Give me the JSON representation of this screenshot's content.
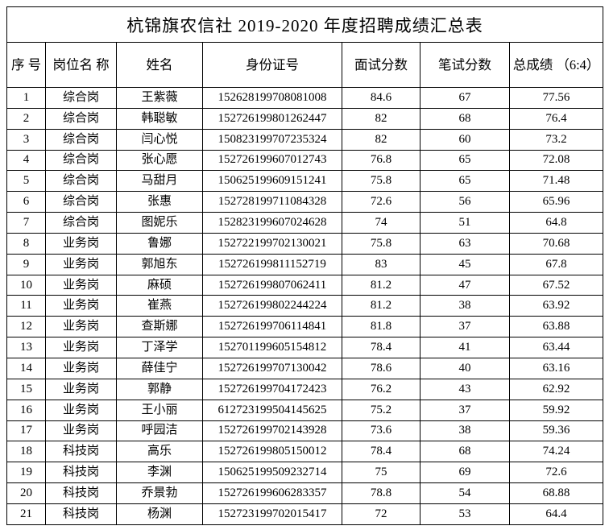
{
  "title": "杭锦旗农信社 2019-2020 年度招聘成绩汇总表",
  "table": {
    "headers": [
      "序\n号",
      "岗位名\n称",
      "姓名",
      "身份证号",
      "面试分数",
      "笔试分数",
      "总成绩\n（6:4）"
    ],
    "col_names": [
      "cell-index",
      "cell-position",
      "cell-name",
      "cell-id-number",
      "cell-interview-score",
      "cell-written-score",
      "cell-total-score"
    ],
    "rows": [
      [
        "1",
        "综合岗",
        "王紫薇",
        "152628199708081008",
        "84.6",
        "67",
        "77.56"
      ],
      [
        "2",
        "综合岗",
        "韩聪敏",
        "152726199801262447",
        "82",
        "68",
        "76.4"
      ],
      [
        "3",
        "综合岗",
        "闫心悦",
        "150823199707235324",
        "82",
        "60",
        "73.2"
      ],
      [
        "4",
        "综合岗",
        "张心愿",
        "152726199607012743",
        "76.8",
        "65",
        "72.08"
      ],
      [
        "5",
        "综合岗",
        "马甜月",
        "150625199609151241",
        "75.8",
        "65",
        "71.48"
      ],
      [
        "6",
        "综合岗",
        "张惠",
        "152728199711084328",
        "72.6",
        "56",
        "65.96"
      ],
      [
        "7",
        "综合岗",
        "图妮乐",
        "152823199607024628",
        "74",
        "51",
        "64.8"
      ],
      [
        "8",
        "业务岗",
        "鲁娜",
        "152722199702130021",
        "75.8",
        "63",
        "70.68"
      ],
      [
        "9",
        "业务岗",
        "郭旭东",
        "152726199811152719",
        "83",
        "45",
        "67.8"
      ],
      [
        "10",
        "业务岗",
        "麻硕",
        "152726199807062411",
        "81.2",
        "47",
        "67.52"
      ],
      [
        "11",
        "业务岗",
        "崔燕",
        "152726199802244224",
        "81.2",
        "38",
        "63.92"
      ],
      [
        "12",
        "业务岗",
        "查斯娜",
        "152726199706114841",
        "81.8",
        "37",
        "63.88"
      ],
      [
        "13",
        "业务岗",
        "丁泽学",
        "152701199605154812",
        "78.4",
        "41",
        "63.44"
      ],
      [
        "14",
        "业务岗",
        "薛佳宁",
        "152726199707130042",
        "78.6",
        "40",
        "63.16"
      ],
      [
        "15",
        "业务岗",
        "郭静",
        "152726199704172423",
        "76.2",
        "43",
        "62.92"
      ],
      [
        "16",
        "业务岗",
        "王小丽",
        "612723199504145625",
        "75.2",
        "37",
        "59.92"
      ],
      [
        "17",
        "业务岗",
        "呼园洁",
        "152726199702143928",
        "73.6",
        "38",
        "59.36"
      ],
      [
        "18",
        "科技岗",
        "高乐",
        "152726199805150012",
        "78.4",
        "68",
        "74.24"
      ],
      [
        "19",
        "科技岗",
        "李渊",
        "150625199509232714",
        "75",
        "69",
        "72.6"
      ],
      [
        "20",
        "科技岗",
        "乔景勃",
        "152726199606283357",
        "78.8",
        "54",
        "68.88"
      ],
      [
        "21",
        "科技岗",
        "杨渊",
        "152723199702015417",
        "72",
        "53",
        "64.4"
      ]
    ]
  }
}
